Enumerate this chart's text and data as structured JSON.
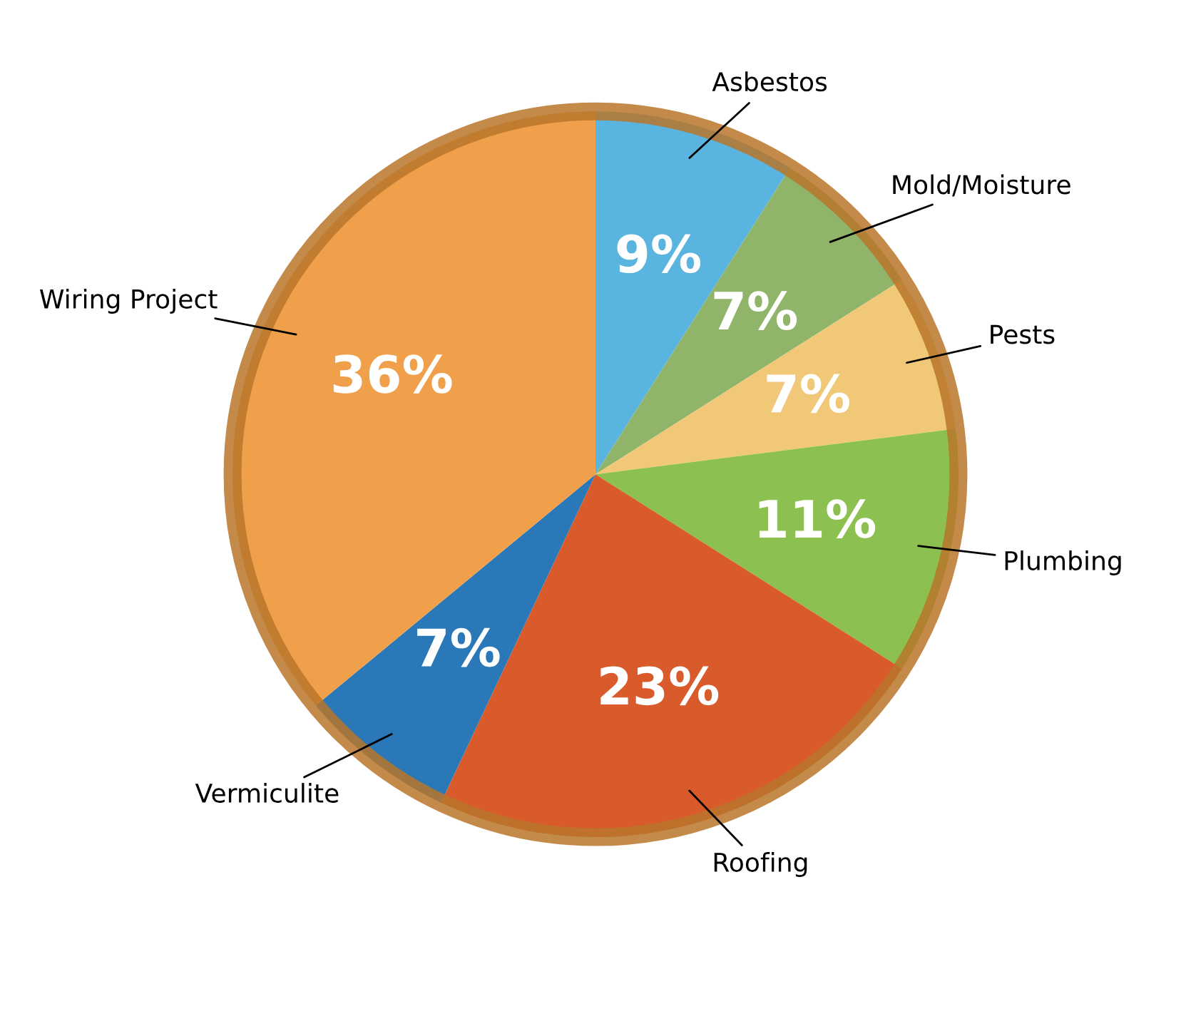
{
  "chart_data": {
    "type": "pie",
    "categories": [
      "Asbestos",
      "Mold/Moisture",
      "Pests",
      "Plumbing",
      "Roofing",
      "Vermiculite",
      "Wiring Project"
    ],
    "values": [
      9,
      7,
      7,
      11,
      23,
      7,
      36
    ],
    "value_labels": [
      "9%",
      "7%",
      "7%",
      "11%",
      "23%",
      "7%",
      "36%"
    ],
    "colors": [
      "#5ab4e0",
      "#8fb46a",
      "#f0c878",
      "#8cc152",
      "#d95a2b",
      "#2a78b8",
      "#f0a04a"
    ],
    "legend": false
  }
}
